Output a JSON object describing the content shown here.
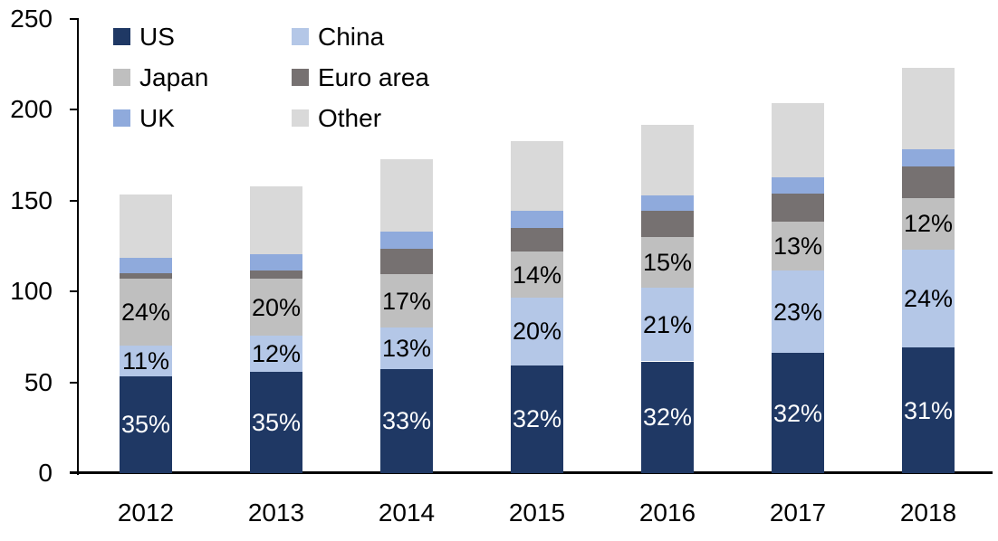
{
  "chart_data": {
    "type": "stacked-bar",
    "title": "",
    "xlabel": "",
    "ylabel": "",
    "categories": [
      "2012",
      "2013",
      "2014",
      "2015",
      "2016",
      "2017",
      "2018"
    ],
    "yticks": [
      "0",
      "50",
      "100",
      "150",
      "200",
      "250"
    ],
    "ylim": [
      0,
      250
    ],
    "grid": "off",
    "legend_position": "top-left, two columns, inside plot",
    "axis_color": "#000000",
    "series": [
      {
        "name": "US",
        "color": "#1F3864",
        "label_color": "#FFFFFF",
        "values": [
          53.5,
          56,
          57.5,
          59.5,
          61.5,
          66,
          69
        ],
        "labels": [
          "35%",
          "35%",
          "33%",
          "32%",
          "32%",
          "32%",
          "31%"
        ]
      },
      {
        "name": "China",
        "color": "#B4C7E7",
        "label_color": "#000000",
        "values": [
          16.5,
          19.5,
          22.5,
          37,
          40.5,
          45.5,
          54
        ],
        "labels": [
          "11%",
          "12%",
          "13%",
          "20%",
          "21%",
          "23%",
          "24%"
        ]
      },
      {
        "name": "Japan",
        "color": "#BFBFBF",
        "label_color": "#000000",
        "values": [
          37,
          31.5,
          29.5,
          25.5,
          28,
          27,
          28.5
        ],
        "labels": [
          "24%",
          "20%",
          "17%",
          "14%",
          "15%",
          "13%",
          "12%"
        ]
      },
      {
        "name": "Euro area",
        "color": "#767171",
        "values": [
          3,
          4.5,
          14,
          13,
          14.5,
          15.5,
          17.5
        ]
      },
      {
        "name": "UK",
        "color": "#8FAADC",
        "values": [
          8.5,
          9,
          9.5,
          9.5,
          8.5,
          9,
          9.5
        ]
      },
      {
        "name": "Other",
        "color": "#D9D9D9",
        "values": [
          35,
          37.5,
          40,
          38.5,
          38.5,
          40.5,
          44.5
        ]
      }
    ]
  }
}
